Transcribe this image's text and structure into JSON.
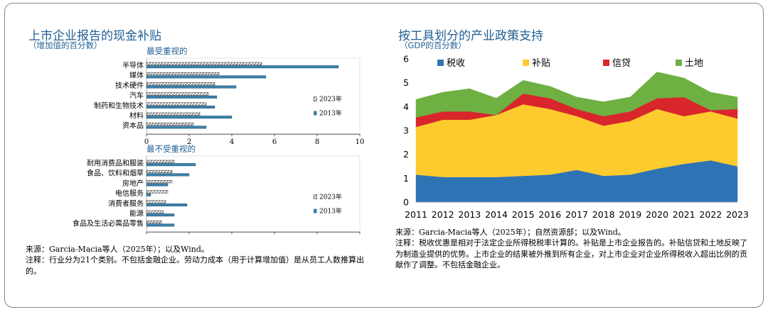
{
  "left_panel": {
    "title": "上市企业报告的现金补贴",
    "subtitle": "（增加值的百分数）",
    "source": "来源：Garcia-Macia等人（2025年）；以及Wind。",
    "note": "注释：行业分为21个类别。不包括金融企业。劳动力成本（用于计算增加值）是从员工人数推算出的。"
  },
  "right_panel": {
    "title": "按工具划分的产业政策支持",
    "subtitle": "（GDP的百分数）",
    "source": "来源：Garcia-Macia等人（2025年）；自然资源部；以及Wind。",
    "note": "注释：税收优惠是相对于法定企业所得税税率计算的。补贴是上市企业报告的。补贴信贷和土地反映了为制造业提供的优势。上市企业的结果被外推到所有企业，对上市企业对企业所得税收入超出比例的贡献作了调整。不包括金融企业。"
  },
  "colors": {
    "accent_blue": "#1f5f95",
    "bar_2013": "#3b7fa7",
    "tax": "#2e74b5",
    "subsidy": "#fdcb2e",
    "credit": "#d9262c",
    "land": "#6eb042"
  },
  "chart_data": [
    {
      "type": "bar",
      "orientation": "horizontal",
      "title": "最受重视的",
      "categories": [
        "半导体",
        "媒体",
        "技术硬件",
        "汽车",
        "制药和生物技术",
        "材料",
        "资本品"
      ],
      "series": [
        {
          "name": "2023年",
          "values": [
            5.4,
            3.4,
            3.2,
            2.9,
            2.8,
            2.5,
            2.2
          ]
        },
        {
          "name": "2013年",
          "values": [
            9.0,
            5.6,
            4.2,
            3.3,
            3.2,
            4.0,
            2.8
          ]
        }
      ],
      "xlim": [
        0,
        10
      ],
      "xticks": [
        0,
        2,
        4,
        6,
        8,
        10
      ],
      "legend": "right"
    },
    {
      "type": "bar",
      "orientation": "horizontal",
      "title": "最不受重视的",
      "categories": [
        "耐用消费品和服装",
        "食品、饮料和烟草",
        "房地产",
        "电信服务",
        "消费者服务",
        "能源",
        "食品及生活必需品零售"
      ],
      "series": [
        {
          "name": "2023年",
          "values": [
            1.3,
            1.2,
            1.2,
            1.0,
            0.9,
            0.8,
            0.7
          ]
        },
        {
          "name": "2013年",
          "values": [
            2.3,
            2.0,
            1.0,
            0.2,
            1.9,
            1.3,
            1.3
          ]
        }
      ],
      "xlim": [
        0,
        10
      ],
      "xticks": [
        0,
        2,
        4,
        6,
        8,
        10
      ],
      "legend": "right"
    },
    {
      "type": "area",
      "stacked": true,
      "x": [
        2011,
        2012,
        2013,
        2014,
        2015,
        2016,
        2017,
        2018,
        2019,
        2020,
        2021,
        2022,
        2023
      ],
      "series": [
        {
          "name": "税收",
          "values": [
            1.15,
            1.05,
            1.05,
            1.05,
            1.1,
            1.15,
            1.35,
            1.1,
            1.15,
            1.4,
            1.6,
            1.75,
            1.5
          ]
        },
        {
          "name": "补贴",
          "values": [
            2.0,
            2.4,
            2.4,
            2.6,
            3.0,
            2.75,
            2.25,
            2.1,
            2.25,
            2.5,
            2.0,
            2.05,
            2.0
          ]
        },
        {
          "name": "信贷",
          "values": [
            0.4,
            0.35,
            0.35,
            0.0,
            0.45,
            0.45,
            0.3,
            0.4,
            0.4,
            0.45,
            0.8,
            0.05,
            0.4
          ]
        },
        {
          "name": "土地",
          "values": [
            0.75,
            0.8,
            0.95,
            0.7,
            0.55,
            0.5,
            0.5,
            0.6,
            0.6,
            1.1,
            0.8,
            0.75,
            0.5
          ]
        }
      ],
      "ylim": [
        0,
        6
      ],
      "yticks": [
        0,
        1,
        2,
        3,
        4,
        5,
        6
      ],
      "legend": "top-left"
    }
  ]
}
